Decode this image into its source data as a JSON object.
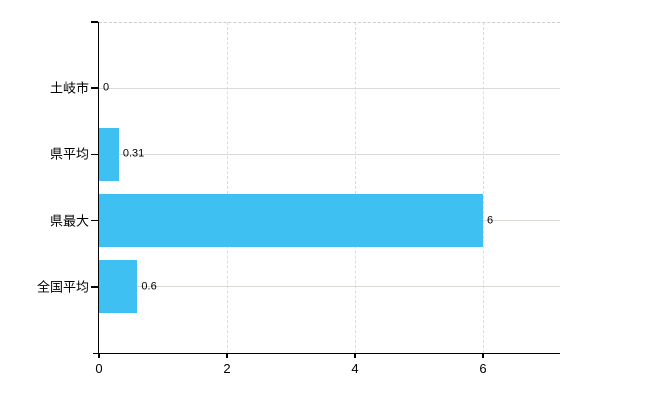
{
  "chart_data": {
    "type": "bar",
    "orientation": "horizontal",
    "title": "",
    "xlabel": "",
    "ylabel": "",
    "categories": [
      "土岐市",
      "県平均",
      "県最大",
      "全国平均"
    ],
    "values": [
      0,
      0.31,
      6,
      0.6
    ],
    "value_labels": [
      "0",
      "0.31",
      "6",
      "0.6"
    ],
    "x_ticks": [
      0,
      2,
      4,
      6
    ],
    "x_tick_labels": [
      "0",
      "2",
      "4",
      "6"
    ],
    "xlim": [
      0,
      7.2
    ],
    "grid": true,
    "legend": false,
    "colors": {
      "bar": "#3ec1f2",
      "grid_horizontal": "#d7ddd4",
      "grid_vertical": "#dcdcdc",
      "axis": "#000000",
      "text": "#000000",
      "top_border": "#cccccc",
      "background": "#ffffff"
    }
  }
}
